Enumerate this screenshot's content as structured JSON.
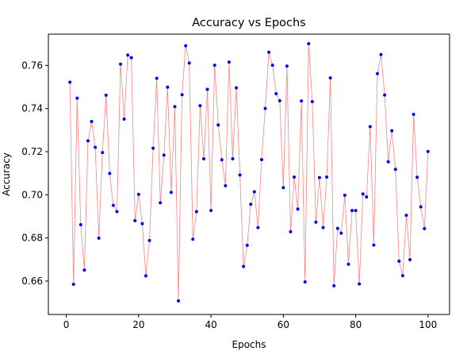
{
  "chart_data": {
    "type": "line",
    "title": "Accuracy vs Epochs",
    "xlabel": "Epochs",
    "ylabel": "Accuracy",
    "xlim": [
      -4.95,
      105.95
    ],
    "ylim": [
      0.6445,
      0.7745
    ],
    "xticks": [
      0,
      20,
      40,
      60,
      80,
      100
    ],
    "yticks": [
      0.66,
      0.68,
      0.7,
      0.72,
      0.74,
      0.76
    ],
    "xtick_labels": [
      "0",
      "20",
      "40",
      "60",
      "80",
      "100"
    ],
    "ytick_labels": [
      "0.66",
      "0.68",
      "0.70",
      "0.72",
      "0.74",
      "0.76"
    ],
    "grid": false,
    "legend": "none",
    "line_color": "#ff8080",
    "marker_color": "#0000ff",
    "series": [
      {
        "x": [
          1,
          2,
          3,
          4,
          5,
          6,
          7,
          8,
          9,
          10,
          11,
          12,
          13,
          14,
          15,
          16,
          17,
          18,
          19,
          20,
          21,
          22,
          23,
          24,
          25,
          26,
          27,
          28,
          29,
          30,
          31,
          32,
          33,
          34,
          35,
          36,
          37,
          38,
          39,
          40,
          41,
          42,
          43,
          44,
          45,
          46,
          47,
          48,
          49,
          50,
          51,
          52,
          53,
          54,
          55,
          56,
          57,
          58,
          59,
          60,
          61,
          62,
          63,
          64,
          65,
          66,
          67,
          68,
          69,
          70,
          71,
          72,
          73,
          74,
          75,
          76,
          77,
          78,
          79,
          80,
          81,
          82,
          83,
          84,
          85,
          86,
          87,
          88,
          89,
          90,
          91,
          92,
          93,
          94,
          95,
          96,
          97,
          98,
          99,
          100
        ],
        "values": [
          0.7522,
          0.6585,
          0.7448,
          0.6861,
          0.6651,
          0.725,
          0.734,
          0.722,
          0.6799,
          0.7196,
          0.7462,
          0.7099,
          0.6951,
          0.6922,
          0.7606,
          0.7351,
          0.7648,
          0.7636,
          0.688,
          0.7002,
          0.6866,
          0.6624,
          0.6788,
          0.7216,
          0.754,
          0.6963,
          0.7184,
          0.7499,
          0.7011,
          0.7409,
          0.6508,
          0.7464,
          0.7691,
          0.7611,
          0.6794,
          0.6922,
          0.7413,
          0.7167,
          0.7489,
          0.6927,
          0.7601,
          0.7324,
          0.7162,
          0.7042,
          0.7615,
          0.7167,
          0.7496,
          0.7092,
          0.6668,
          0.6766,
          0.6956,
          0.7014,
          0.6848,
          0.7163,
          0.74,
          0.7661,
          0.7601,
          0.7469,
          0.7436,
          0.7033,
          0.7597,
          0.6829,
          0.7082,
          0.6934,
          0.7435,
          0.6596,
          0.7701,
          0.7432,
          0.6873,
          0.708,
          0.6848,
          0.7082,
          0.7542,
          0.6578,
          0.6844,
          0.6822,
          0.6998,
          0.6678,
          0.6927,
          0.6927,
          0.6587,
          0.7004,
          0.699,
          0.7316,
          0.6767,
          0.7562,
          0.765,
          0.7463,
          0.7153,
          0.7297,
          0.7118,
          0.6692,
          0.6625,
          0.6905,
          0.6699,
          0.7373,
          0.7081,
          0.6944,
          0.6843,
          0.7201
        ]
      }
    ]
  }
}
